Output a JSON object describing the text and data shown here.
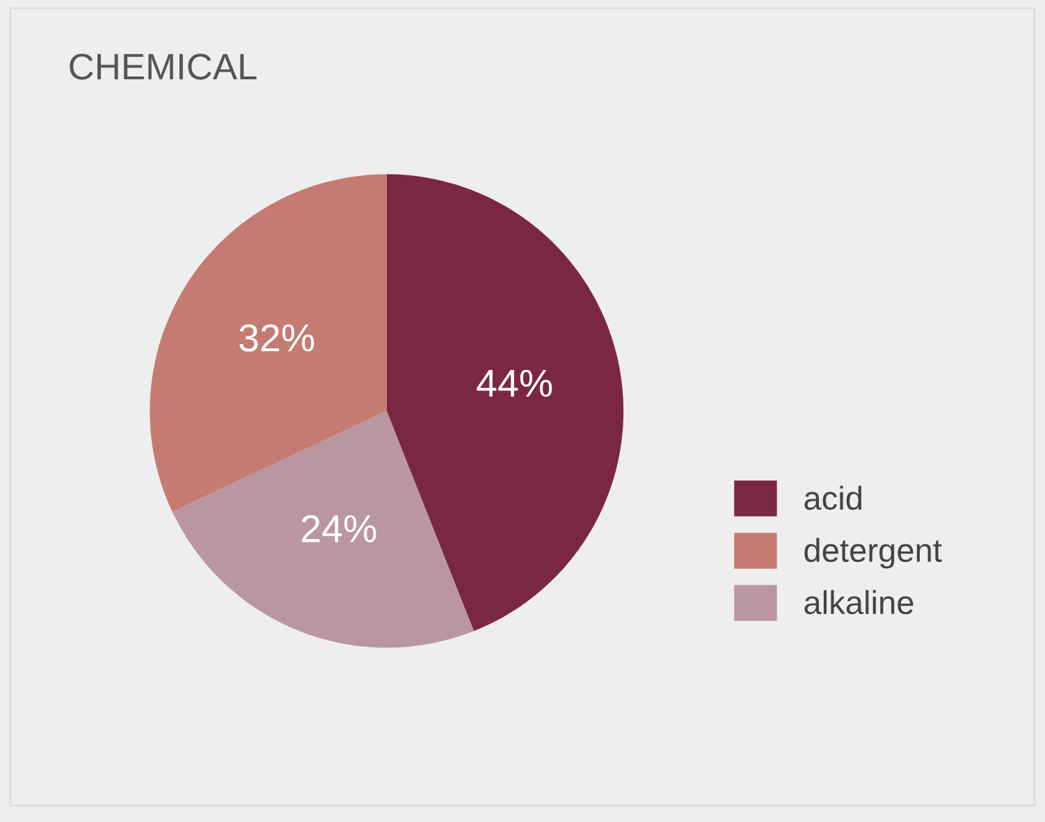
{
  "chart_data": {
    "type": "pie",
    "title": "CHEMICAL",
    "categories": [
      "acid",
      "detergent",
      "alkaline"
    ],
    "values": [
      44,
      32,
      24
    ],
    "colors": [
      "#7b2743",
      "#c57b72",
      "#ba97a0"
    ],
    "value_labels": [
      "44%",
      "32%",
      "24%"
    ],
    "legend": "right"
  }
}
